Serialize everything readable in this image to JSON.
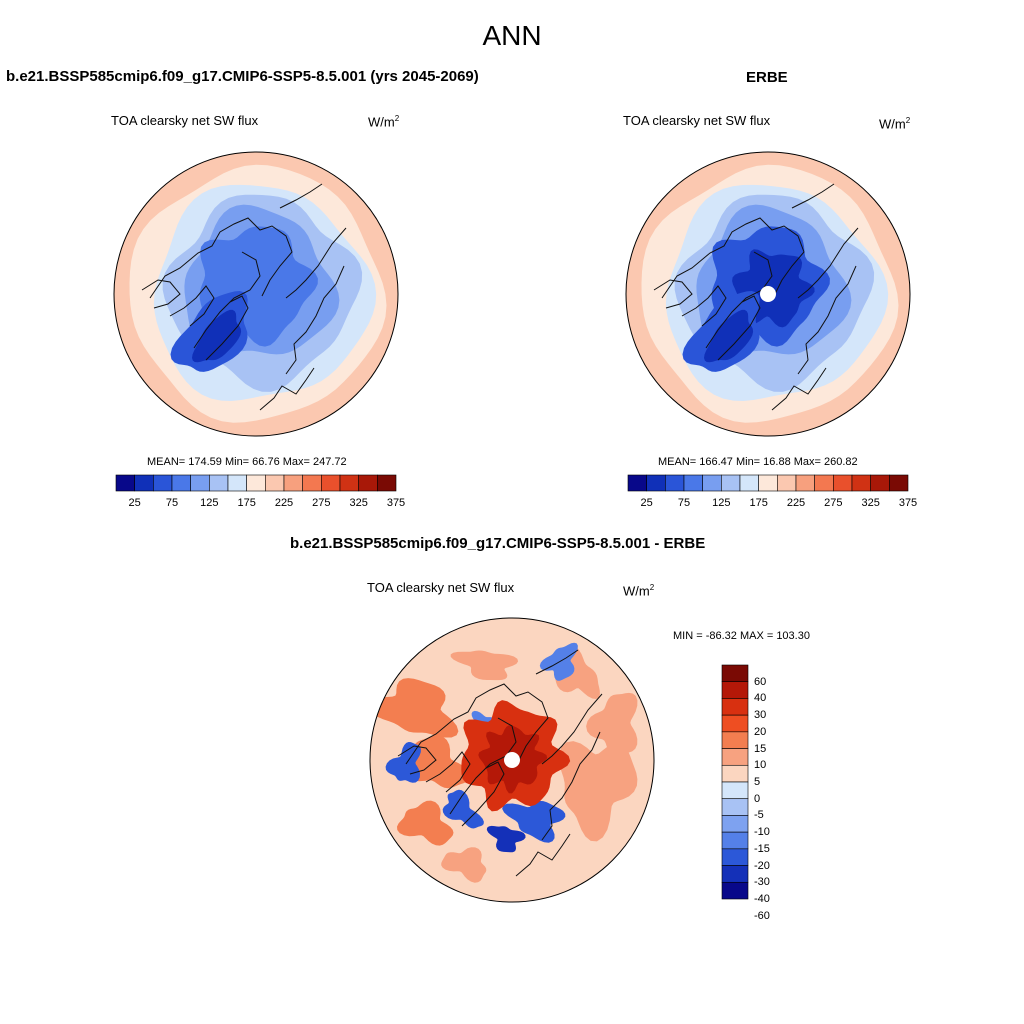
{
  "figure": {
    "title": "ANN"
  },
  "panels": [
    {
      "id": "model",
      "title": "b.e21.BSSP585cmip6.f09_g17.CMIP6-SSP5-8.5.001 (yrs 2045-2069)",
      "variable": "TOA clearsky net SW flux",
      "units_base": "W/m",
      "units_sup": "2",
      "stats": "MEAN= 174.59  Min=  66.76  Max= 247.72",
      "has_pole_hole": false
    },
    {
      "id": "obs",
      "title": "ERBE",
      "variable": "TOA clearsky net SW flux",
      "units_base": "W/m",
      "units_sup": "2",
      "stats": "MEAN= 166.47  Min=  16.88  Max= 260.82",
      "has_pole_hole": true
    },
    {
      "id": "diff",
      "title": "b.e21.BSSP585cmip6.f09_g17.CMIP6-SSP5-8.5.001 - ERBE",
      "variable": "TOA clearsky net SW flux",
      "units_base": "W/m",
      "units_sup": "2",
      "stats": "MIN = -86.32 MAX = 103.30",
      "has_pole_hole": true
    }
  ],
  "colorbar_abs": {
    "colors": [
      "#08088a",
      "#1030b8",
      "#2a55d8",
      "#4a78e8",
      "#789ef0",
      "#a8c2f4",
      "#d4e6fa",
      "#fde8da",
      "#fbc8b0",
      "#f7a07e",
      "#f37850",
      "#e9502c",
      "#d03214",
      "#a81808",
      "#7a0a04"
    ],
    "labels": [
      "25",
      "75",
      "125",
      "175",
      "225",
      "275",
      "325",
      "375"
    ]
  },
  "colorbar_diff": {
    "colors": [
      "#7a0a04",
      "#b41808",
      "#d83010",
      "#ee4e22",
      "#f37e50",
      "#f7a280",
      "#fbd6c0",
      "#d4e6fa",
      "#a8c2f4",
      "#7ea2f0",
      "#5480e8",
      "#2c58d8",
      "#1430b8",
      "#08088a"
    ],
    "labels": [
      "60",
      "40",
      "30",
      "20",
      "15",
      "10",
      "5",
      "0",
      "-5",
      "-10",
      "-15",
      "-20",
      "-30",
      "-40",
      "-60"
    ]
  }
}
